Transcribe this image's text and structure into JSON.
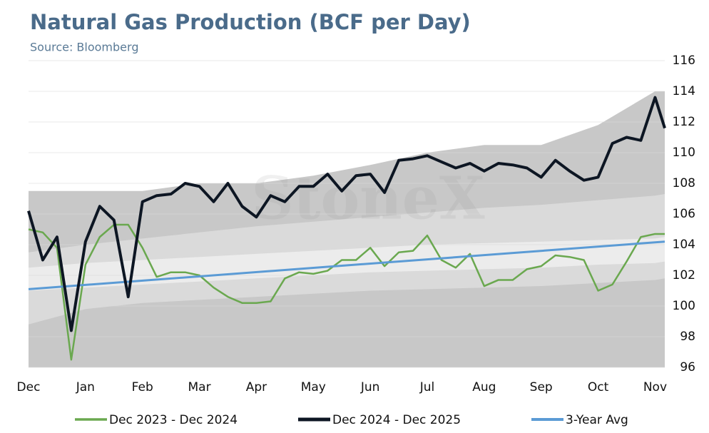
{
  "chart_data": {
    "type": "line",
    "title": "Natural Gas Production (BCF per Day)",
    "subtitle": "Source: Bloomberg",
    "watermark": "StoneX",
    "x": [
      0,
      0.25,
      0.5,
      0.75,
      1,
      1.25,
      1.5,
      1.75,
      2,
      2.25,
      2.5,
      2.75,
      3,
      3.25,
      3.5,
      3.75,
      4,
      4.25,
      4.5,
      4.75,
      5,
      5.25,
      5.5,
      5.75,
      6,
      6.25,
      6.5,
      6.75,
      7,
      7.25,
      7.5,
      7.75,
      8,
      8.25,
      8.5,
      8.75,
      9,
      9.25,
      9.5,
      9.75,
      10,
      10.25,
      10.5,
      10.75,
      11,
      11.17
    ],
    "series": [
      {
        "name": "Dec 2023 - Dec 2024",
        "color": "#6aa84f",
        "values": [
          105,
          104.8,
          103.8,
          96.5,
          102.7,
          104.5,
          105.3,
          105.3,
          103.8,
          101.9,
          102.2,
          102.2,
          102,
          101.2,
          100.6,
          100.2,
          100.2,
          100.3,
          101.8,
          102.2,
          102.1,
          102.3,
          103,
          103,
          103.8,
          102.6,
          103.5,
          103.6,
          104.6,
          103,
          102.5,
          103.4,
          101.3,
          101.7,
          101.7,
          102.4,
          102.6,
          103.3,
          103.2,
          103,
          101,
          101.4,
          102.9,
          104.5,
          104.7,
          104.7
        ]
      },
      {
        "name": "Dec 2024 - Dec 2025",
        "color": "#0d1623",
        "values": [
          106.2,
          103,
          104.5,
          98.4,
          104.2,
          106.5,
          105.6,
          100.6,
          106.8,
          107.2,
          107.3,
          108,
          107.8,
          106.8,
          108,
          106.5,
          105.8,
          107.2,
          106.8,
          107.8,
          107.8,
          108.6,
          107.5,
          108.5,
          108.6,
          107.4,
          109.5,
          109.6,
          109.8,
          109.4,
          109,
          109.3,
          108.8,
          109.3,
          109.2,
          109,
          108.4,
          109.5,
          108.8,
          108.2,
          108.4,
          110.6,
          111,
          110.8,
          113.6,
          111.6
        ]
      },
      {
        "name": "3-Year Avg",
        "color": "#5b9bd5",
        "x": [
          0,
          11.17
        ],
        "values": [
          101.1,
          104.2
        ]
      }
    ],
    "range_x": [
      0,
      1,
      2,
      3,
      4,
      5,
      6,
      7,
      8,
      9,
      10,
      11,
      11.17
    ],
    "range_areas": [
      {
        "color": "#c8c8c8",
        "values": [
          107.5,
          107.5,
          107.5,
          108,
          108,
          108.5,
          109.2,
          110,
          110.5,
          110.5,
          111.8,
          114,
          114
        ]
      },
      {
        "color": "#dadada",
        "values": [
          103.5,
          104,
          104.4,
          104.8,
          105.2,
          105.5,
          105.8,
          106.1,
          106.4,
          106.6,
          106.9,
          107.2,
          107.3
        ]
      },
      {
        "color": "#ececec",
        "values": [
          102.5,
          102.8,
          103,
          103.2,
          103.4,
          103.6,
          103.8,
          104,
          104.1,
          104.2,
          104.3,
          104.4,
          104.5
        ]
      },
      {
        "color": "#dadada",
        "values": [
          101,
          101.2,
          101.4,
          101.6,
          101.8,
          102,
          102.2,
          102.3,
          102.4,
          102.5,
          102.7,
          102.8,
          102.9
        ]
      },
      {
        "color": "#c8c8c8",
        "values": [
          98.8,
          99.8,
          100.2,
          100.4,
          100.6,
          100.8,
          101,
          101.1,
          101.2,
          101.3,
          101.5,
          101.7,
          101.8
        ]
      }
    ],
    "xlim": [
      0,
      11.17
    ],
    "xticks": [
      {
        "value": 0,
        "label": "Dec"
      },
      {
        "value": 1,
        "label": "Jan"
      },
      {
        "value": 2,
        "label": "Feb"
      },
      {
        "value": 3,
        "label": "Mar"
      },
      {
        "value": 4,
        "label": "Apr"
      },
      {
        "value": 5,
        "label": "May"
      },
      {
        "value": 6,
        "label": "Jun"
      },
      {
        "value": 7,
        "label": "Jul"
      },
      {
        "value": 8,
        "label": "Aug"
      },
      {
        "value": 9,
        "label": "Sep"
      },
      {
        "value": 10,
        "label": "Oct"
      },
      {
        "value": 11,
        "label": "Nov"
      }
    ],
    "ylim": [
      96,
      116
    ],
    "yticks": [
      96,
      98,
      100,
      102,
      104,
      106,
      108,
      110,
      112,
      114,
      116
    ],
    "grid": true,
    "legend": "bottom"
  }
}
